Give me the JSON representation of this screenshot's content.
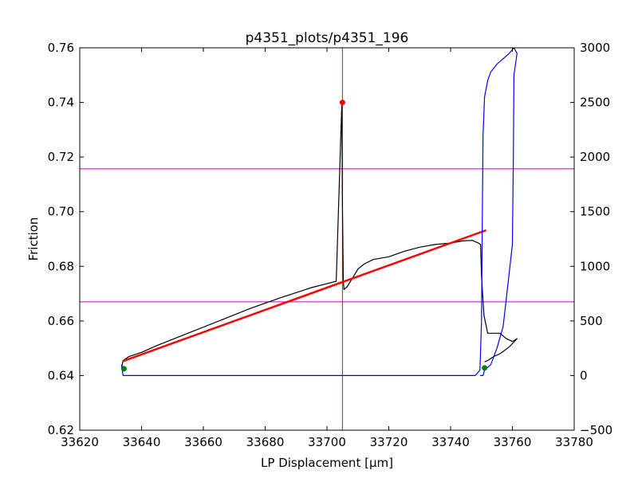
{
  "chart_data": {
    "type": "line",
    "title": "p4351_plots/p4351_196",
    "xlabel": "LP Displacement [μm]",
    "ylabel": "Friction",
    "y2label": "",
    "xlim": [
      33620,
      33780
    ],
    "ylim": [
      0.62,
      0.76
    ],
    "y2lim": [
      -500,
      3000
    ],
    "grid": false,
    "xticks": [
      33620,
      33640,
      33660,
      33680,
      33700,
      33720,
      33740,
      33760,
      33780
    ],
    "yticks": [
      0.62,
      0.64,
      0.66,
      0.68,
      0.7,
      0.72,
      0.74,
      0.76
    ],
    "y2ticks": [
      -500,
      0,
      500,
      1000,
      1500,
      2000,
      2500,
      3000
    ],
    "series": [
      {
        "axis": "left",
        "color": "#000000",
        "x": [
          33633.5,
          33634,
          33636,
          33640,
          33645,
          33655,
          33665,
          33675,
          33685,
          33695,
          33703,
          33704.8,
          33705,
          33705.3,
          33705.5,
          33706.5,
          33708,
          33710,
          33712,
          33715,
          33720,
          33725,
          33730,
          33735,
          33740,
          33744,
          33747,
          33749,
          33749.7,
          33750,
          33750.8,
          33752,
          33756,
          33758,
          33760,
          33761.5,
          33759,
          33756,
          33754,
          33752,
          33751
        ],
        "y": [
          0.6425,
          0.6455,
          0.647,
          0.6485,
          0.651,
          0.6555,
          0.66,
          0.6645,
          0.6685,
          0.6722,
          0.6745,
          0.7395,
          0.702,
          0.6745,
          0.6715,
          0.6725,
          0.6752,
          0.679,
          0.6808,
          0.6825,
          0.6835,
          0.6855,
          0.687,
          0.688,
          0.6885,
          0.6893,
          0.6895,
          0.6885,
          0.688,
          0.676,
          0.662,
          0.6555,
          0.6555,
          0.6535,
          0.6525,
          0.6535,
          0.6505,
          0.648,
          0.647,
          0.6455,
          0.645
        ]
      },
      {
        "axis": "left",
        "name": "",
        "color": "#ff0000",
        "x": [
          33634,
          33751.5
        ],
        "y": [
          0.6453,
          0.6932
        ]
      },
      {
        "axis": "right",
        "color": "#0000ff",
        "x": [
          33633.5,
          33634,
          33660,
          33700,
          33730,
          33748,
          33749.5,
          33750,
          33750.2,
          33750.5,
          33751,
          33752,
          33753,
          33755,
          33757,
          33759,
          33760.5,
          33761.5,
          33761,
          33760.5,
          33760.3,
          33760,
          33758,
          33757,
          33755,
          33753,
          33751,
          33750.5,
          33749.5
        ],
        "y": [
          100,
          0,
          0,
          0,
          0,
          0,
          50,
          500,
          1200,
          2200,
          2550,
          2700,
          2780,
          2850,
          2900,
          2950,
          3000,
          2950,
          2850,
          2750,
          2000,
          1200,
          700,
          450,
          250,
          100,
          50,
          0,
          0
        ]
      }
    ],
    "markers": [
      {
        "axis": "left",
        "x": 33705,
        "y": 0.74,
        "color": "#ff0000"
      },
      {
        "axis": "left",
        "x": 33634.3,
        "y": 0.6425,
        "color": "#008000"
      },
      {
        "axis": "left",
        "x": 33751,
        "y": 0.6428,
        "color": "#008000"
      }
    ],
    "vlines": [
      {
        "x": 33705,
        "color": "#ff0000"
      }
    ],
    "hlines": [
      {
        "axis": "left",
        "y": 0.7157,
        "color": "#bf00bf"
      },
      {
        "axis": "left",
        "y": 0.667,
        "color": "#bf00bf"
      }
    ]
  }
}
